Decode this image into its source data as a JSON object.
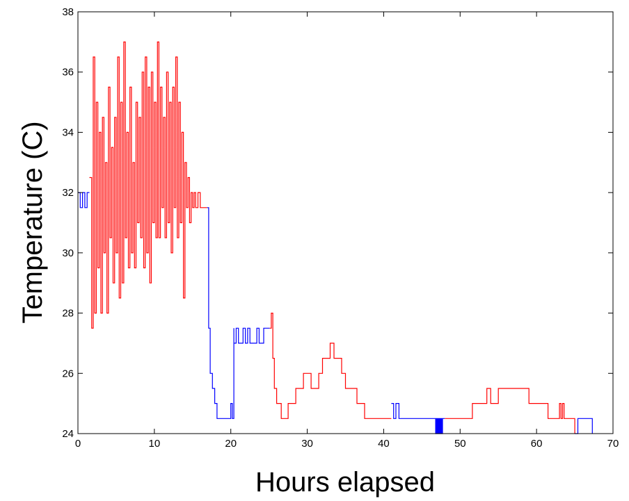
{
  "chart_data": {
    "type": "line",
    "title": "",
    "xlabel": "Hours elapsed",
    "ylabel": "Temperature (C)",
    "xlim": [
      0,
      70
    ],
    "ylim": [
      24,
      38
    ],
    "xticks": [
      0,
      10,
      20,
      30,
      40,
      50,
      60,
      70
    ],
    "yticks": [
      24,
      26,
      28,
      30,
      32,
      34,
      36,
      38
    ],
    "grid": false,
    "legend": "none",
    "colors": {
      "heating": "#ff0000",
      "cooling": "#0000ff"
    },
    "segments": [
      {
        "color": "heating",
        "x": [
          1.5,
          1.8,
          2.0,
          2.2,
          2.4,
          2.6,
          2.8,
          3.0,
          3.2,
          3.4,
          3.6,
          3.8,
          4.0,
          4.2,
          4.4,
          4.6,
          4.8,
          5.0,
          5.2,
          5.4,
          5.6,
          5.8,
          6.0,
          6.2,
          6.4,
          6.6,
          6.8,
          7.0,
          7.2,
          7.4,
          7.6,
          7.8,
          8.0,
          8.2,
          8.4,
          8.6,
          8.8,
          9.0,
          9.2,
          9.4,
          9.6,
          9.8,
          10.0,
          10.2,
          10.4,
          10.6,
          10.8,
          11.0,
          11.2,
          11.4,
          11.6,
          11.8,
          12.0,
          12.2,
          12.4,
          12.6,
          12.8,
          13.0,
          13.2,
          13.4,
          13.6,
          13.8,
          14.0,
          14.2,
          14.4,
          14.6,
          14.8,
          15.0,
          15.2,
          15.4,
          15.7,
          16.0,
          16.3,
          16.6,
          16.9
        ],
        "y": [
          32.5,
          27.5,
          36.5,
          28.0,
          35.0,
          29.5,
          34.0,
          28.0,
          34.5,
          30.0,
          33.0,
          28.0,
          35.5,
          30.5,
          33.5,
          29.0,
          34.5,
          30.0,
          36.5,
          28.5,
          35.0,
          29.0,
          37.0,
          30.5,
          34.0,
          29.5,
          35.5,
          30.0,
          33.0,
          29.5,
          35.0,
          31.0,
          34.5,
          30.5,
          36.0,
          29.5,
          36.5,
          30.0,
          35.5,
          29.0,
          36.0,
          31.0,
          35.0,
          30.5,
          37.0,
          30.5,
          35.5,
          31.5,
          34.5,
          30.5,
          36.0,
          31.0,
          35.0,
          30.0,
          35.5,
          31.5,
          36.5,
          30.5,
          35.0,
          31.0,
          34.0,
          28.5,
          33.0,
          31.5,
          32.5,
          31.0,
          32.0,
          31.5,
          32.0,
          31.5,
          32.0,
          31.5,
          31.5,
          31.5,
          31.5
        ]
      },
      {
        "color": "cooling",
        "x": [
          16.9,
          17.1,
          17.3,
          17.6,
          17.9,
          18.2,
          18.5,
          19.0,
          19.5,
          20.0,
          20.2,
          20.4
        ],
        "y": [
          31.5,
          27.5,
          26.0,
          25.5,
          25.0,
          24.5,
          24.5,
          24.5,
          24.5,
          25.0,
          24.5,
          27.5
        ]
      },
      {
        "color": "cooling",
        "x": [
          20.4,
          20.7,
          21.0,
          21.3,
          21.6,
          21.9,
          22.2,
          22.5,
          22.8,
          23.1,
          23.4,
          23.7,
          24.0,
          24.3,
          24.6,
          24.9,
          25.1
        ],
        "y": [
          27.0,
          27.5,
          27.0,
          27.0,
          27.5,
          27.0,
          27.5,
          27.0,
          27.0,
          27.0,
          27.5,
          27.0,
          27.0,
          27.5,
          27.5,
          27.5,
          27.5
        ]
      },
      {
        "color": "heating",
        "x": [
          25.1,
          25.3,
          25.5,
          25.7,
          26.0,
          26.3,
          26.6,
          27.0,
          27.5,
          28.0,
          28.5,
          29.0,
          29.5,
          30.0,
          30.5,
          31.0,
          31.5,
          32.0,
          32.5,
          33.0,
          33.5,
          34.0,
          34.5,
          35.0,
          35.5,
          36.0,
          36.5,
          37.0,
          37.5,
          38.0,
          38.5,
          39.0,
          39.5,
          40.0,
          40.5,
          41.0
        ],
        "y": [
          27.5,
          28.0,
          26.5,
          25.5,
          25.0,
          25.0,
          24.5,
          24.5,
          25.0,
          25.0,
          25.5,
          25.5,
          26.0,
          26.0,
          25.5,
          25.5,
          26.0,
          26.5,
          26.5,
          27.0,
          26.5,
          26.5,
          26.0,
          25.5,
          25.5,
          25.5,
          25.0,
          25.0,
          24.5,
          24.5,
          24.5,
          24.5,
          24.5,
          24.5,
          24.5,
          24.5
        ]
      },
      {
        "color": "cooling",
        "x": [
          41.0,
          41.3,
          41.6,
          42.0,
          43.0,
          44.0,
          45.0,
          46.0,
          46.7,
          46.8,
          46.9,
          47.0,
          47.1,
          47.2,
          47.3,
          47.4,
          47.5,
          47.6,
          47.7,
          48.0
        ],
        "y": [
          25.0,
          24.5,
          25.0,
          24.5,
          24.5,
          24.5,
          24.5,
          24.5,
          24.5,
          24.0,
          24.5,
          24.0,
          24.5,
          24.0,
          24.5,
          24.0,
          24.5,
          24.0,
          24.5,
          24.5
        ]
      },
      {
        "color": "heating",
        "x": [
          48.0,
          49.0,
          50.0,
          51.0,
          51.6,
          52.0,
          52.5,
          53.0,
          53.5,
          54.0,
          54.5,
          55.0,
          55.5,
          56.0,
          56.5,
          57.0,
          57.5,
          58.0,
          58.5,
          59.0,
          59.5,
          60.0,
          60.5,
          61.0,
          61.5,
          62.0,
          62.5,
          63.0,
          63.2,
          63.4,
          63.6,
          64.0,
          64.5,
          65.0
        ],
        "y": [
          24.5,
          24.5,
          24.5,
          24.5,
          25.0,
          25.0,
          25.0,
          25.0,
          25.5,
          25.0,
          25.0,
          25.5,
          25.5,
          25.5,
          25.5,
          25.5,
          25.5,
          25.5,
          25.5,
          25.0,
          25.0,
          25.0,
          25.0,
          25.0,
          24.5,
          24.5,
          24.5,
          25.0,
          24.5,
          25.0,
          24.5,
          24.5,
          24.5,
          24.0
        ]
      },
      {
        "color": "cooling",
        "x": [
          65.0,
          65.4,
          65.8,
          66.3,
          66.8,
          67.3
        ],
        "y": [
          24.0,
          24.5,
          24.5,
          24.5,
          24.5,
          24.0
        ]
      },
      {
        "color": "cooling",
        "x": [
          0.0,
          0.3,
          0.6,
          0.9,
          1.2,
          1.5
        ],
        "y": [
          32.0,
          31.5,
          32.0,
          31.5,
          32.0,
          32.0
        ]
      }
    ]
  }
}
